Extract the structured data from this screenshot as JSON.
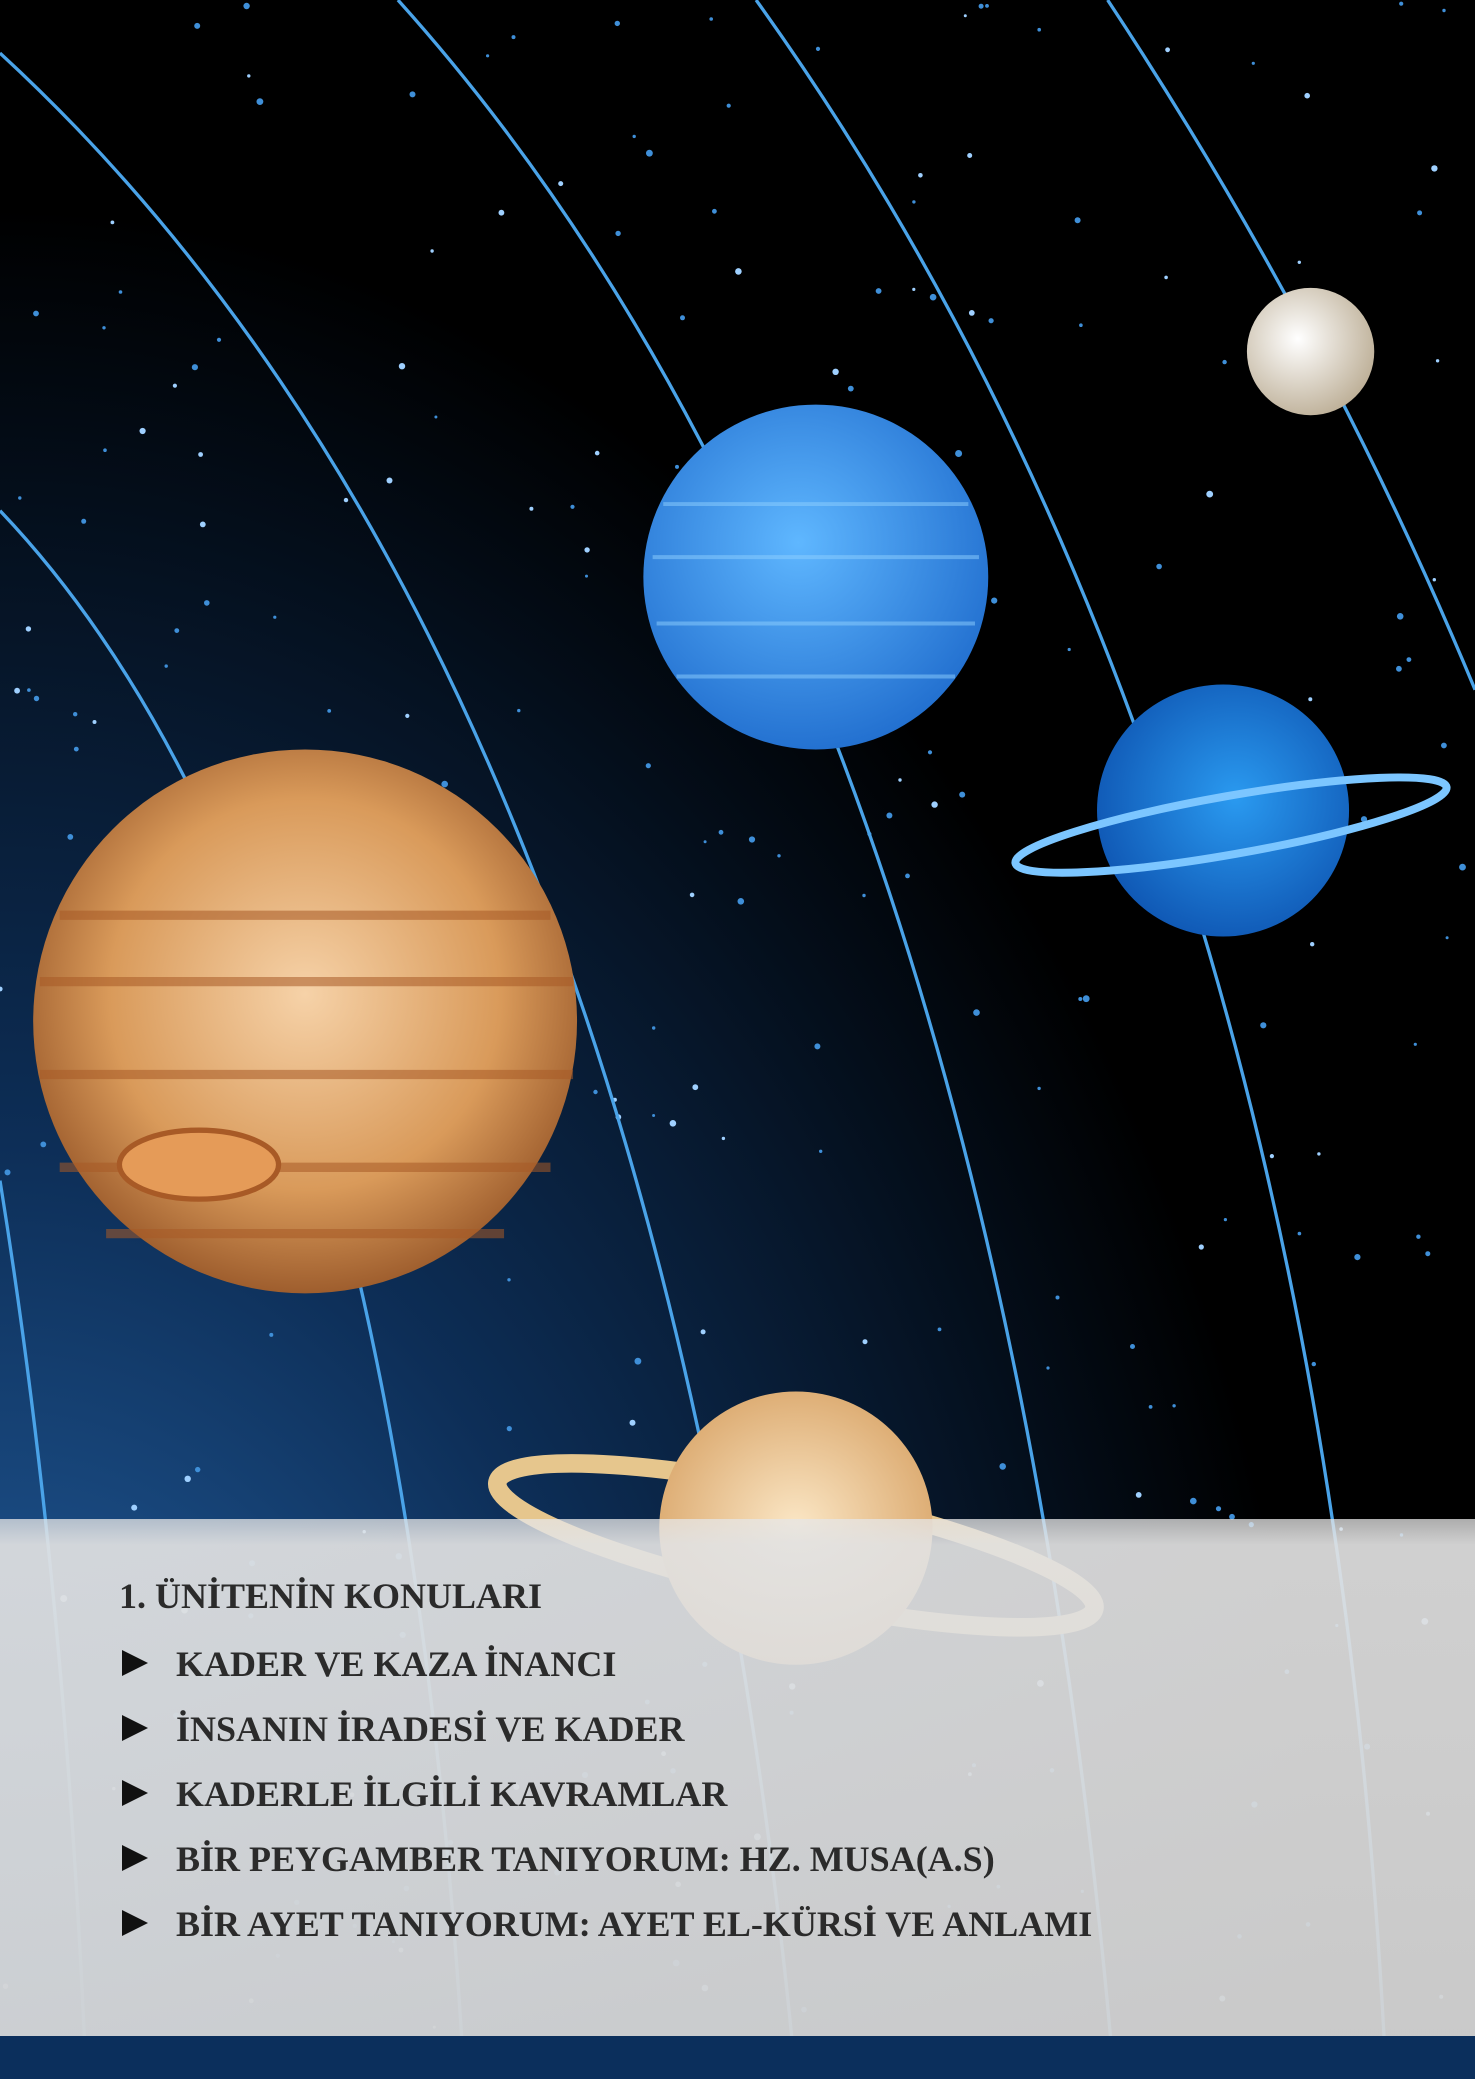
{
  "header": {
    "title": "1. ÜNİTENİN KONULARI"
  },
  "topics": [
    "KADER VE KAZA İNANCI",
    "İNSANIN İRADESİ VE KADER",
    "KADERLE İLGİLİ KAVRAMLAR",
    "BİR PEYGAMBER TANIYORUM: HZ. MUSA(A.S)",
    "BİR AYET TANIYORUM: AYET EL-KÜRSİ VE ANLAMI"
  ]
}
